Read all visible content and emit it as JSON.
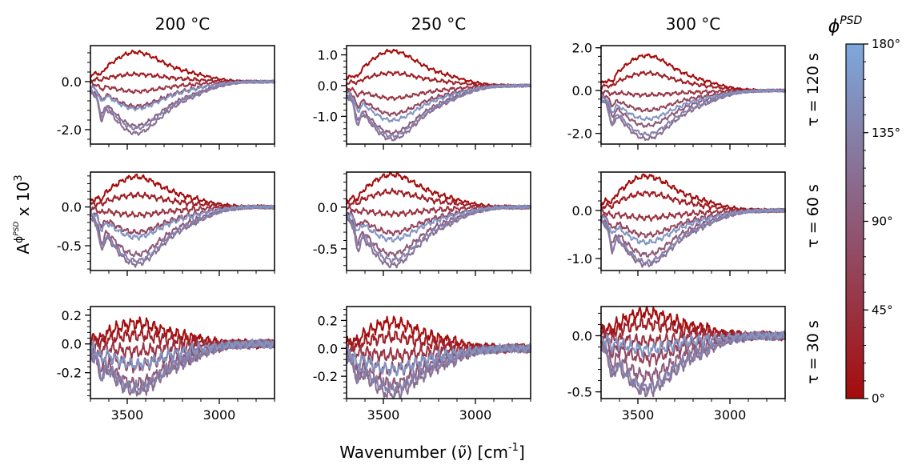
{
  "figure": {
    "column_titles": [
      "200 °C",
      "250 °C",
      "300 °C"
    ],
    "row_labels": [
      "τ = 120 s",
      "τ = 60 s",
      "τ = 30 s"
    ],
    "xlabel_prefix": "Wavenumber (",
    "xlabel_symbol": "ν̃",
    "xlabel_unit": ") [cm",
    "xlabel_sup": "-1",
    "xlabel_close": "]",
    "ylabel_base": "A",
    "ylabel_sup": "ϕ",
    "ylabel_sup2": "PSD",
    "ylabel_suffix": " x 10",
    "ylabel_exp": "3",
    "colorbar": {
      "title_base": "ϕ",
      "title_sup": "PSD",
      "ticks": [
        "0°",
        "45°",
        "90°",
        "135°",
        "180°"
      ],
      "color_start": "#a50b0b",
      "color_mid": "#8e5a78",
      "color_end": "#7da8dd"
    }
  },
  "chart_data": {
    "type": "line",
    "x_axis": {
      "label": "Wavenumber (ν̃) [cm-1]",
      "range": [
        3700,
        2700
      ],
      "reversed": true,
      "ticks": [
        3500,
        3000
      ],
      "tick_labels": [
        "3500",
        "3000"
      ]
    },
    "series_phases_deg": [
      0,
      22.5,
      45,
      67.5,
      90,
      112.5,
      135,
      157.5
    ],
    "panels": [
      {
        "row": 0,
        "col": 0,
        "temperature": "200 °C",
        "tau": "τ = 120 s",
        "ylim": [
          -2.6,
          1.5
        ],
        "yticks": [
          0.0,
          -2.0
        ],
        "ytick_labels": [
          "0.0",
          "-2.0"
        ],
        "amplitudes": [
          1.2,
          0.3,
          -0.4,
          -1.0,
          -1.8,
          -2.1,
          -1.9,
          -1.1
        ]
      },
      {
        "row": 0,
        "col": 1,
        "temperature": "250 °C",
        "tau": "τ = 120 s",
        "ylim": [
          -1.9,
          1.3
        ],
        "yticks": [
          1.0,
          0.0,
          -1.0
        ],
        "ytick_labels": [
          "1.0",
          "0.0",
          "-1.0"
        ],
        "amplitudes": [
          1.1,
          0.4,
          -0.4,
          -0.9,
          -1.5,
          -1.7,
          -1.6,
          -1.1
        ]
      },
      {
        "row": 0,
        "col": 2,
        "temperature": "300 °C",
        "tau": "τ = 120 s",
        "ylim": [
          -2.5,
          2.1
        ],
        "yticks": [
          2.0,
          0.0,
          -2.0
        ],
        "ytick_labels": [
          "2.0",
          "0.0",
          "-2.0"
        ],
        "amplitudes": [
          1.6,
          0.8,
          -0.2,
          -0.9,
          -1.6,
          -2.2,
          -2.0,
          -1.3
        ]
      },
      {
        "row": 1,
        "col": 0,
        "temperature": "200 °C",
        "tau": "τ = 60 s",
        "ylim": [
          -0.82,
          0.45
        ],
        "yticks": [
          0.0,
          -0.5
        ],
        "ytick_labels": [
          "0.0",
          "-0.5"
        ],
        "amplitudes": [
          0.38,
          0.15,
          -0.1,
          -0.32,
          -0.6,
          -0.72,
          -0.68,
          -0.38
        ]
      },
      {
        "row": 1,
        "col": 1,
        "temperature": "250 °C",
        "tau": "τ = 60 s",
        "ylim": [
          -0.76,
          0.42
        ],
        "yticks": [
          0.0,
          -0.5
        ],
        "ytick_labels": [
          "0.0",
          "-0.5"
        ],
        "amplitudes": [
          0.38,
          0.18,
          -0.08,
          -0.3,
          -0.55,
          -0.68,
          -0.62,
          -0.38
        ]
      },
      {
        "row": 1,
        "col": 2,
        "temperature": "300 °C",
        "tau": "τ = 60 s",
        "ylim": [
          -1.25,
          0.8
        ],
        "yticks": [
          0.0,
          -1.0
        ],
        "ytick_labels": [
          "0.0",
          "-1.0"
        ],
        "amplitudes": [
          0.7,
          0.35,
          -0.15,
          -0.5,
          -0.9,
          -1.1,
          -1.05,
          -0.65
        ]
      },
      {
        "row": 2,
        "col": 0,
        "temperature": "200 °C",
        "tau": "τ = 30 s",
        "ylim": [
          -0.38,
          0.26
        ],
        "yticks": [
          0.2,
          0.0,
          -0.2
        ],
        "ytick_labels": [
          "0.2",
          "0.0",
          "-0.2"
        ],
        "amplitudes": [
          0.14,
          0.06,
          -0.05,
          -0.15,
          -0.27,
          -0.32,
          -0.3,
          -0.14
        ]
      },
      {
        "row": 2,
        "col": 1,
        "temperature": "250 °C",
        "tau": "τ = 30 s",
        "ylim": [
          -0.36,
          0.3
        ],
        "yticks": [
          0.2,
          0.0,
          -0.2
        ],
        "ytick_labels": [
          "0.2",
          "0.0",
          "-0.2"
        ],
        "amplitudes": [
          0.18,
          0.08,
          -0.05,
          -0.15,
          -0.25,
          -0.32,
          -0.28,
          -0.15
        ]
      },
      {
        "row": 2,
        "col": 2,
        "temperature": "300 °C",
        "tau": "τ = 30 s",
        "ylim": [
          -0.56,
          0.26
        ],
        "yticks": [
          0.0,
          -0.5
        ],
        "ytick_labels": [
          "0.0",
          "-0.5"
        ],
        "amplitudes": [
          0.2,
          0.1,
          -0.05,
          -0.2,
          -0.35,
          -0.48,
          -0.45,
          -0.12
        ]
      }
    ]
  }
}
